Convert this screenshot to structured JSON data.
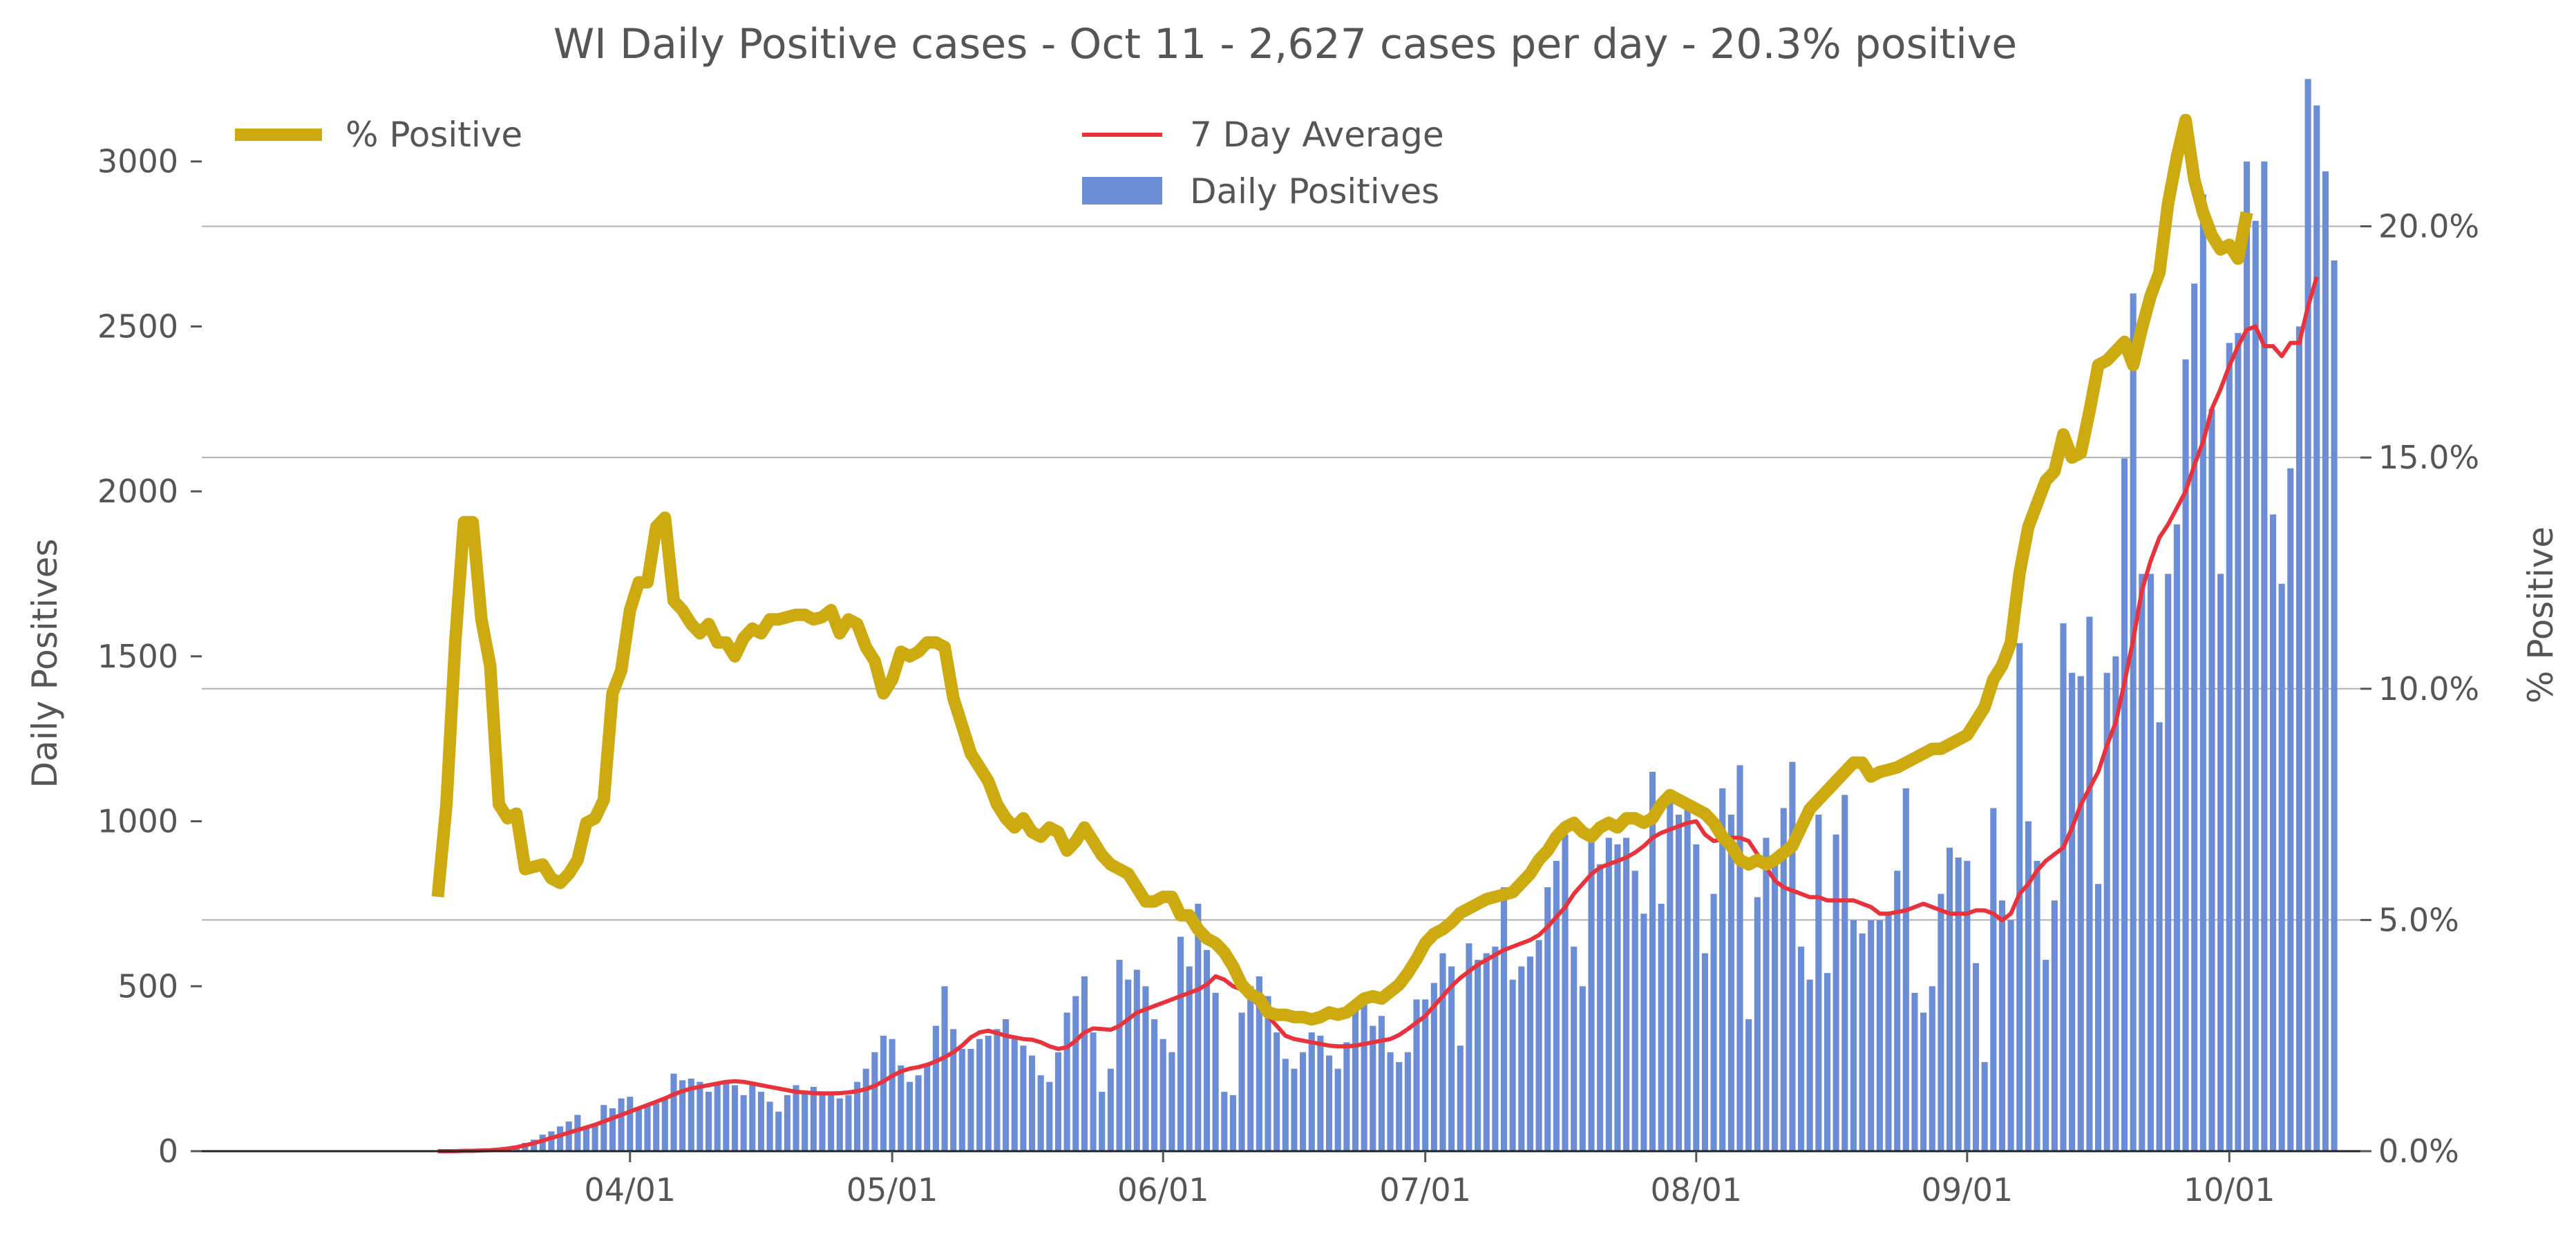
{
  "chart_data": {
    "type": "bar",
    "title": "WI Daily Positive cases - Oct 11 - 2,627 cases per day - 20.3% positive",
    "ylabel": "Daily Positives",
    "y2label": "% Positive",
    "x_start": "2020-03-10",
    "x_end": "2020-10-11",
    "xlim": [
      "2020-02-12",
      "2020-10-16"
    ],
    "x_ticks": [
      "04/01",
      "05/01",
      "06/01",
      "07/01",
      "08/01",
      "09/01",
      "10/01"
    ],
    "ylim": [
      0,
      3280
    ],
    "y_ticks": [
      "0",
      "500",
      "1000",
      "1500",
      "2000",
      "2500",
      "3000"
    ],
    "y2lim": [
      0,
      23.4
    ],
    "y2_ticks": [
      "0.0%",
      "5.0%",
      "10.0%",
      "15.0%",
      "20.0%"
    ],
    "grid": "horizontal lines at right-axis ticks",
    "legend": {
      "left": "upper-left",
      "right": "upper-center"
    },
    "colors": {
      "bars": "#6b8dd6",
      "average": "#e8323c",
      "percent": "#ccaa10",
      "text": "#555555",
      "grid": "#b0b0b0"
    },
    "series": [
      {
        "name": "Daily Positives",
        "kind": "bar",
        "axis": "left",
        "values": [
          0,
          0,
          0,
          1,
          2,
          3,
          4,
          5,
          10,
          15,
          25,
          35,
          50,
          60,
          75,
          90,
          110,
          70,
          80,
          140,
          130,
          160,
          165,
          130,
          140,
          145,
          160,
          235,
          215,
          220,
          210,
          180,
          210,
          205,
          200,
          170,
          210,
          180,
          150,
          120,
          170,
          200,
          180,
          195,
          180,
          170,
          160,
          170,
          210,
          250,
          300,
          350,
          340,
          260,
          210,
          230,
          260,
          380,
          500,
          370,
          310,
          310,
          340,
          350,
          370,
          400,
          350,
          320,
          290,
          230,
          210,
          300,
          420,
          470,
          530,
          360,
          180,
          250,
          580,
          520,
          550,
          500,
          400,
          340,
          300,
          650,
          560,
          750,
          610,
          480,
          180,
          170,
          420,
          500,
          530,
          470,
          360,
          280,
          250,
          300,
          360,
          350,
          290,
          250,
          330,
          430,
          460,
          380,
          410,
          300,
          270,
          300,
          460,
          460,
          510,
          600,
          560,
          320,
          630,
          580,
          600,
          620,
          800,
          520,
          560,
          590,
          640,
          800,
          880,
          960,
          620,
          500,
          970,
          870,
          950,
          930,
          950,
          850,
          720,
          1150,
          750,
          1060,
          1020,
          1050,
          930,
          600,
          780,
          1100,
          1020,
          1170,
          400,
          770,
          950,
          880,
          1040,
          1180,
          620,
          520,
          1020,
          540,
          960,
          1080,
          700,
          660,
          700,
          700,
          720,
          850,
          1100,
          480,
          420,
          500,
          780,
          920,
          890,
          880,
          570,
          270,
          1040,
          760,
          700,
          1540,
          1000,
          880,
          580,
          760,
          1600,
          1450,
          1440,
          1620,
          810,
          1450,
          1500,
          2100,
          2600,
          1750,
          1750,
          1300,
          1750,
          1900,
          2400,
          2630,
          2900,
          2250,
          1750,
          2450,
          2480,
          3000,
          2820,
          3000,
          1930,
          1720,
          2070,
          2500,
          3250,
          3170,
          2970,
          2700
        ]
      },
      {
        "name": "7 Day Average",
        "kind": "line",
        "axis": "left",
        "values": [
          0,
          0,
          0,
          1,
          1,
          2,
          3,
          5,
          8,
          12,
          18,
          24,
          32,
          40,
          48,
          56,
          64,
          72,
          80,
          90,
          100,
          110,
          120,
          130,
          140,
          150,
          160,
          172,
          182,
          190,
          195,
          200,
          205,
          210,
          212,
          210,
          205,
          200,
          195,
          190,
          185,
          180,
          178,
          176,
          175,
          175,
          176,
          178,
          182,
          188,
          198,
          212,
          228,
          242,
          250,
          255,
          262,
          272,
          285,
          300,
          320,
          345,
          360,
          365,
          358,
          350,
          345,
          340,
          338,
          330,
          318,
          310,
          315,
          335,
          360,
          372,
          370,
          368,
          380,
          400,
          420,
          430,
          440,
          450,
          460,
          470,
          480,
          490,
          505,
          530,
          520,
          500,
          490,
          470,
          440,
          410,
          380,
          350,
          340,
          335,
          330,
          325,
          320,
          318,
          318,
          320,
          325,
          330,
          335,
          340,
          352,
          370,
          390,
          410,
          440,
          470,
          500,
          525,
          545,
          565,
          580,
          595,
          610,
          620,
          630,
          640,
          655,
          680,
          710,
          740,
          780,
          810,
          840,
          860,
          870,
          880,
          890,
          905,
          925,
          950,
          965,
          975,
          985,
          995,
          1000,
          960,
          940,
          945,
          950,
          950,
          940,
          900,
          860,
          820,
          800,
          790,
          780,
          770,
          770,
          760,
          760,
          760,
          760,
          750,
          740,
          720,
          720,
          725,
          730,
          740,
          750,
          740,
          730,
          720,
          720,
          720,
          730,
          730,
          720,
          700,
          720,
          780,
          810,
          850,
          880,
          900,
          920,
          980,
          1050,
          1100,
          1150,
          1230,
          1300,
          1420,
          1550,
          1700,
          1790,
          1860,
          1900,
          1950,
          2000,
          2080,
          2150,
          2250,
          2310,
          2380,
          2440,
          2490,
          2500,
          2440,
          2440,
          2410,
          2450,
          2450,
          2560,
          2650
        ],
        "line_width": 6
      },
      {
        "name": "% Positive",
        "kind": "line",
        "axis": "right",
        "values": [
          5.5,
          7.5,
          11,
          13.6,
          13.6,
          11.5,
          10.5,
          7.5,
          7.2,
          7.3,
          6.1,
          6.15,
          6.2,
          5.9,
          5.8,
          6.0,
          6.3,
          7.1,
          7.2,
          7.6,
          9.9,
          10.4,
          11.7,
          12.3,
          12.3,
          13.5,
          13.7,
          11.9,
          11.7,
          11.4,
          11.2,
          11.4,
          11.0,
          11.0,
          10.7,
          11.1,
          11.3,
          11.2,
          11.5,
          11.5,
          11.55,
          11.6,
          11.6,
          11.5,
          11.55,
          11.7,
          11.2,
          11.5,
          11.4,
          10.9,
          10.6,
          9.9,
          10.2,
          10.8,
          10.7,
          10.8,
          11.0,
          11.0,
          10.9,
          9.8,
          9.2,
          8.6,
          8.3,
          8.0,
          7.5,
          7.2,
          7.0,
          7.2,
          6.9,
          6.8,
          7.0,
          6.9,
          6.5,
          6.7,
          7.0,
          6.7,
          6.4,
          6.2,
          6.1,
          6.0,
          5.7,
          5.4,
          5.4,
          5.5,
          5.5,
          5.1,
          5.1,
          4.8,
          4.6,
          4.5,
          4.3,
          4.0,
          3.6,
          3.4,
          3.3,
          3.0,
          2.95,
          2.95,
          2.9,
          2.9,
          2.85,
          2.9,
          3.0,
          2.95,
          3.0,
          3.15,
          3.3,
          3.35,
          3.3,
          3.45,
          3.6,
          3.85,
          4.15,
          4.5,
          4.7,
          4.8,
          4.95,
          5.15,
          5.25,
          5.35,
          5.45,
          5.5,
          5.55,
          5.6,
          5.8,
          6.0,
          6.3,
          6.5,
          6.8,
          7.0,
          7.1,
          6.9,
          6.8,
          7.0,
          7.1,
          7.0,
          7.2,
          7.2,
          7.1,
          7.2,
          7.5,
          7.7,
          7.6,
          7.5,
          7.4,
          7.3,
          7.1,
          6.8,
          6.6,
          6.3,
          6.2,
          6.3,
          6.2,
          6.3,
          6.45,
          6.6,
          7.0,
          7.4,
          7.6,
          7.8,
          8.0,
          8.2,
          8.4,
          8.4,
          8.1,
          8.2,
          8.25,
          8.3,
          8.4,
          8.5,
          8.6,
          8.7,
          8.7,
          8.8,
          8.9,
          9.0,
          9.3,
          9.6,
          10.2,
          10.5,
          11.0,
          12.5,
          13.5,
          14.0,
          14.5,
          14.7,
          15.5,
          15.0,
          15.1,
          16.0,
          17.0,
          17.1,
          17.3,
          17.5,
          17.0,
          17.8,
          18.5,
          19.0,
          20.5,
          21.5,
          22.3,
          21.0,
          20.3,
          19.8,
          19.5,
          19.6,
          19.3,
          20.3
        ]
      }
    ]
  }
}
